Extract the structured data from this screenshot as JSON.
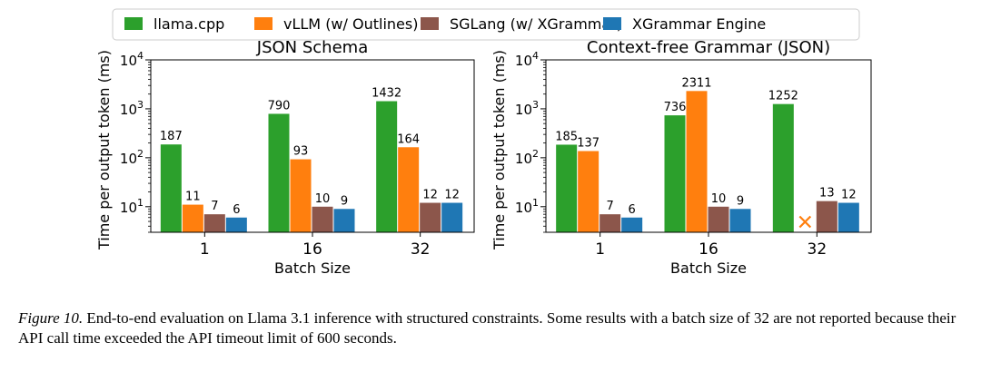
{
  "legend": [
    {
      "name": "llama.cpp",
      "color": "#2ca02c"
    },
    {
      "name": "vLLM (w/ Outlines)",
      "color": "#ff7f0e"
    },
    {
      "name": "SGLang (w/ XGrammar)",
      "color": "#8c564b"
    },
    {
      "name": "XGrammar Engine",
      "color": "#1f77b4"
    }
  ],
  "chart_data": [
    {
      "type": "bar",
      "title": "JSON Schema",
      "xlabel": "Batch Size",
      "ylabel": "Time per output token (ms)",
      "yscale": "log",
      "ylim": [
        3,
        10000
      ],
      "yticks": [
        {
          "value": 10,
          "base": "10",
          "exp": "1"
        },
        {
          "value": 100,
          "base": "10",
          "exp": "2"
        },
        {
          "value": 1000,
          "base": "10",
          "exp": "3"
        },
        {
          "value": 10000,
          "base": "10",
          "exp": "4"
        }
      ],
      "categories": [
        "1",
        "16",
        "32"
      ],
      "series": [
        {
          "name": "llama.cpp",
          "values": [
            187,
            790,
            1432
          ],
          "labels": [
            "187",
            "790",
            "1432"
          ]
        },
        {
          "name": "vLLM (w/ Outlines)",
          "values": [
            11,
            93,
            164
          ],
          "labels": [
            "11",
            "93",
            "164"
          ]
        },
        {
          "name": "SGLang (w/ XGrammar)",
          "values": [
            7,
            10,
            12
          ],
          "labels": [
            "7",
            "10",
            "12"
          ]
        },
        {
          "name": "XGrammar Engine",
          "values": [
            6,
            9,
            12
          ],
          "labels": [
            "6",
            "9",
            "12"
          ]
        }
      ]
    },
    {
      "type": "bar",
      "title": "Context-free Grammar (JSON)",
      "xlabel": "Batch Size",
      "ylabel": "Time per output token (ms)",
      "yscale": "log",
      "ylim": [
        3,
        10000
      ],
      "yticks": [
        {
          "value": 10,
          "base": "10",
          "exp": "1"
        },
        {
          "value": 100,
          "base": "10",
          "exp": "2"
        },
        {
          "value": 1000,
          "base": "10",
          "exp": "3"
        },
        {
          "value": 10000,
          "base": "10",
          "exp": "4"
        }
      ],
      "categories": [
        "1",
        "16",
        "32"
      ],
      "series": [
        {
          "name": "llama.cpp",
          "values": [
            185,
            736,
            1252
          ],
          "labels": [
            "185",
            "736",
            "1252"
          ]
        },
        {
          "name": "vLLM (w/ Outlines)",
          "values": [
            137,
            2311,
            null
          ],
          "labels": [
            "137",
            "2311",
            "×"
          ]
        },
        {
          "name": "SGLang (w/ XGrammar)",
          "values": [
            7,
            10,
            13
          ],
          "labels": [
            "7",
            "10",
            "13"
          ]
        },
        {
          "name": "XGrammar Engine",
          "values": [
            6,
            9,
            12
          ],
          "labels": [
            "6",
            "9",
            "12"
          ]
        }
      ]
    }
  ],
  "caption": {
    "label": "Figure 10.",
    "text": "End-to-end evaluation on Llama 3.1 inference with structured constraints. Some results with a batch size of 32 are not reported because their API call time exceeded the API timeout limit of 600 seconds."
  }
}
